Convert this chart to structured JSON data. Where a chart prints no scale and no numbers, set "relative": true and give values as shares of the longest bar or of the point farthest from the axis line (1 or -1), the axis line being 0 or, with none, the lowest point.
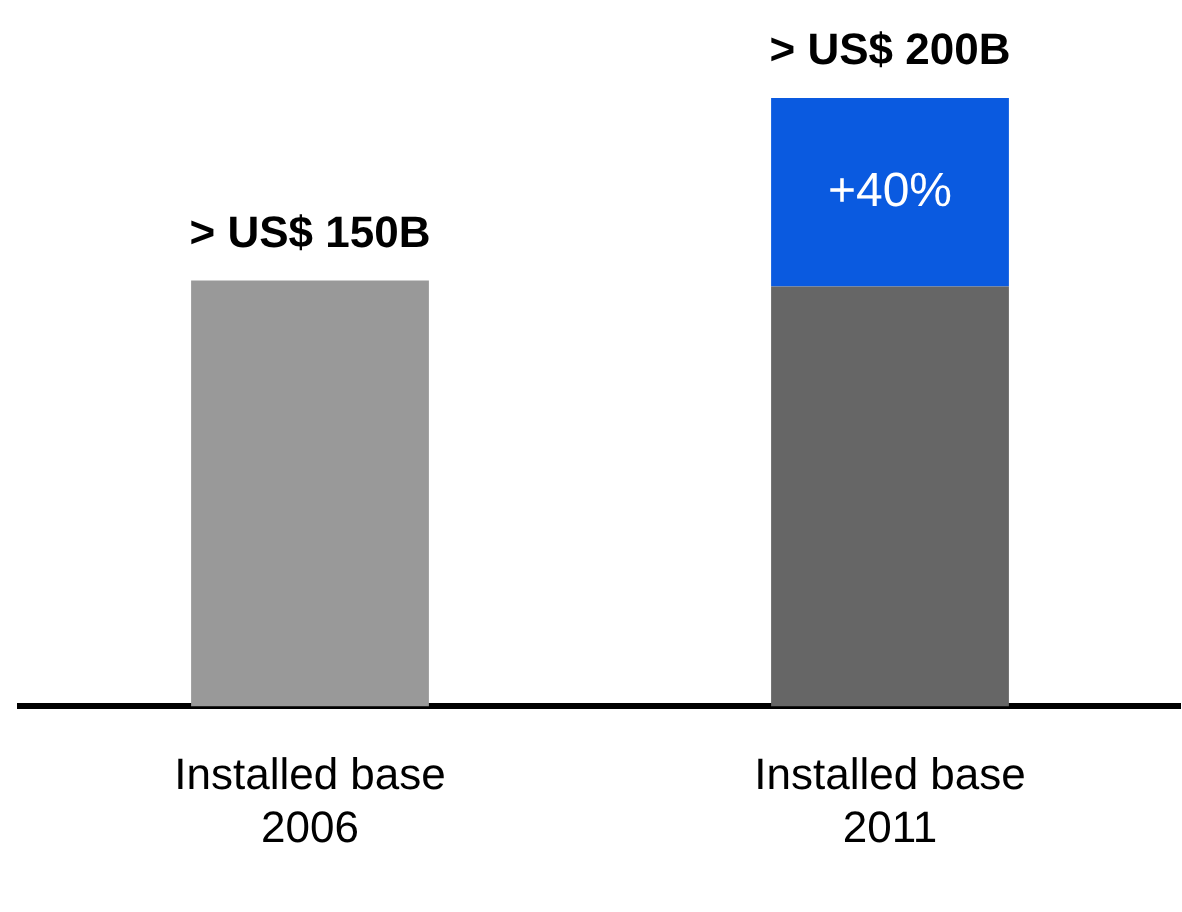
{
  "chart_data": {
    "type": "bar",
    "relative": true,
    "stacked": true,
    "categories": [
      "Installed base\n2006",
      "Installed base\n2011"
    ],
    "series": [
      {
        "colors": [
          "#999999",
          "#666666"
        ],
        "values": [
          0.7,
          0.69
        ]
      },
      {
        "color": "#0a5ae0",
        "values": [
          null,
          0.31
        ]
      }
    ],
    "totals": [
      "> US$ 150B",
      "> US$ 200B"
    ],
    "annotations": [
      "+40%"
    ]
  }
}
